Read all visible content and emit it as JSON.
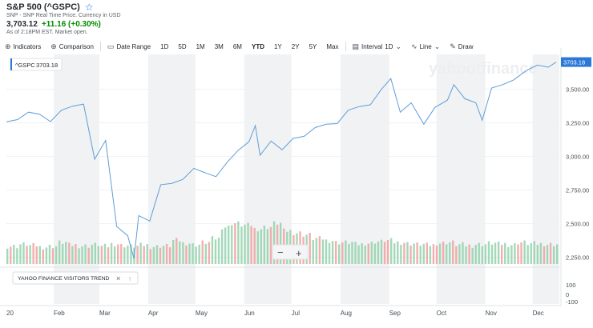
{
  "header": {
    "title": "S&P 500 (^GSPC)",
    "subtitle": "SNP - SNP Real Time Price. Currency in USD",
    "price": "3,703.12",
    "change": "+11.16 (+0.30%)",
    "as_of": "As of 2:18PM EST. Market open."
  },
  "toolbar": {
    "indicators": "Indicators",
    "comparison": "Comparison",
    "date_range": "Date Range",
    "ranges": [
      "1D",
      "5D",
      "1M",
      "3M",
      "6M",
      "YTD",
      "1Y",
      "2Y",
      "5Y",
      "Max"
    ],
    "active_range": "YTD",
    "interval_label": "Interval",
    "interval_value": "1D",
    "chart_type": "Line",
    "draw": "Draw"
  },
  "watermark": "yahoo!finance",
  "legend": {
    "symbol": "^GSPC",
    "value": "3703.18"
  },
  "last_price_tag": "3703.18",
  "zoom_controls": {
    "minus": "−",
    "plus": "+"
  },
  "trend_panel": {
    "label": "YAHOO FINANCE VISITORS TREND",
    "close": "×",
    "up": "↑"
  },
  "colors": {
    "line": "#5f9dd9",
    "up_volume": "#8cd0a8",
    "down_volume": "#f09b9b",
    "band": "#f1f2f3",
    "price_tag": "#2b78d6"
  },
  "chart_data": {
    "type": "line",
    "x": [
      "2020-01-02",
      "2020-01-09",
      "2020-01-16",
      "2020-01-23",
      "2020-01-30",
      "2020-02-06",
      "2020-02-13",
      "2020-02-20",
      "2020-02-27",
      "2020-03-05",
      "2020-03-12",
      "2020-03-19",
      "2020-03-23",
      "2020-03-26",
      "2020-04-02",
      "2020-04-09",
      "2020-04-16",
      "2020-04-23",
      "2020-04-30",
      "2020-05-07",
      "2020-05-14",
      "2020-05-21",
      "2020-05-28",
      "2020-06-04",
      "2020-06-08",
      "2020-06-11",
      "2020-06-18",
      "2020-06-25",
      "2020-07-02",
      "2020-07-09",
      "2020-07-16",
      "2020-07-23",
      "2020-07-30",
      "2020-08-06",
      "2020-08-13",
      "2020-08-20",
      "2020-08-27",
      "2020-09-02",
      "2020-09-08",
      "2020-09-15",
      "2020-09-23",
      "2020-09-30",
      "2020-10-08",
      "2020-10-12",
      "2020-10-19",
      "2020-10-26",
      "2020-10-30",
      "2020-11-05",
      "2020-11-12",
      "2020-11-19",
      "2020-11-27",
      "2020-12-04",
      "2020-12-11",
      "2020-12-16"
    ],
    "series": [
      {
        "values": [
          3258,
          3275,
          3330,
          3315,
          3260,
          3345,
          3375,
          3390,
          2980,
          3120,
          2480,
          2410,
          2240,
          2560,
          2520,
          2790,
          2800,
          2830,
          2912,
          2880,
          2850,
          2955,
          3045,
          3110,
          3230,
          3010,
          3115,
          3050,
          3135,
          3150,
          3215,
          3240,
          3245,
          3345,
          3372,
          3385,
          3500,
          3580,
          3330,
          3400,
          3240,
          3365,
          3420,
          3535,
          3430,
          3400,
          3270,
          3510,
          3535,
          3570,
          3640,
          3680,
          3665,
          3703
        ]
      }
    ],
    "y_ticks": [
      "3,500.00",
      "3,250.00",
      "3,000.00",
      "2,750.00",
      "2,500.00",
      "2,250.00"
    ],
    "y_range": [
      2200,
      3760
    ],
    "x_tick_labels": [
      "20",
      "Feb",
      "Mar",
      "Apr",
      "May",
      "Jun",
      "Jul",
      "Aug",
      "Sep",
      "Oct",
      "Nov",
      "Dec"
    ],
    "panel_y_ticks": [
      "100",
      "0",
      "-100"
    ],
    "volume": {
      "values": [
        0.4,
        0.45,
        0.42,
        0.38,
        0.4,
        0.5,
        0.43,
        0.41,
        0.44,
        0.4,
        0.46,
        0.42,
        0.4,
        0.43,
        0.39,
        0.41,
        0.55,
        0.48,
        0.44,
        0.5,
        0.6,
        0.9,
        1.0,
        0.95,
        0.85,
        0.9,
        1.0,
        0.8,
        0.75,
        0.7,
        0.6,
        0.55,
        0.5,
        0.5,
        0.45,
        0.48,
        0.52,
        0.55,
        0.5,
        0.47,
        0.45,
        0.43,
        0.48,
        0.5,
        0.44,
        0.42,
        0.45,
        0.48,
        0.46,
        0.44,
        0.5,
        0.47,
        0.46,
        0.45
      ],
      "up": [
        1,
        0,
        1,
        1,
        0,
        1,
        1,
        0,
        0,
        1,
        0,
        0,
        0,
        1,
        0,
        1,
        1,
        1,
        0,
        1,
        0,
        1,
        1,
        1,
        1,
        0,
        1,
        0,
        1,
        1,
        1,
        1,
        0,
        1,
        1,
        1,
        1,
        1,
        0,
        1,
        0,
        1,
        1,
        1,
        0,
        0,
        0,
        1,
        1,
        1,
        1,
        1,
        0,
        1
      ]
    }
  }
}
